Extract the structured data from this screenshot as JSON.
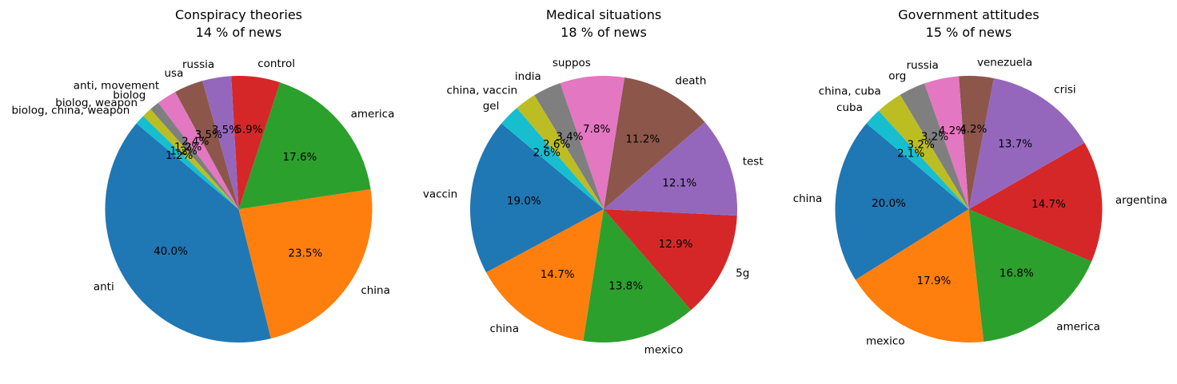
{
  "chart_data": [
    {
      "type": "pie",
      "title": "Conspiracy theories",
      "subtitle": "14 % of news",
      "start_angle_deg": 140,
      "direction": "counterclockwise",
      "colors": [
        "#1f77b4",
        "#ff7f0e",
        "#2ca02c",
        "#d62728",
        "#9467bd",
        "#8c564b",
        "#e377c2",
        "#7f7f7f",
        "#bcbd22",
        "#17becf"
      ],
      "categories": [
        "anti",
        "china",
        "america",
        "control",
        "russia",
        "usa",
        "anti, movement",
        "biolog",
        "biolog, weapon",
        "biolog, china, weapon"
      ],
      "values": [
        40.0,
        23.5,
        17.6,
        5.9,
        3.5,
        3.5,
        2.4,
        1.2,
        1.2,
        1.2
      ],
      "pct_labels": [
        "40.0%",
        "23.5%",
        "17.6%",
        "5.9%",
        "3.5%",
        "3.5%",
        "2.4%",
        "1.2%",
        "1.2%",
        "1.2%"
      ]
    },
    {
      "type": "pie",
      "title": "Medical situations",
      "subtitle": "18 % of news",
      "start_angle_deg": 140,
      "direction": "counterclockwise",
      "colors": [
        "#1f77b4",
        "#ff7f0e",
        "#2ca02c",
        "#d62728",
        "#9467bd",
        "#8c564b",
        "#e377c2",
        "#7f7f7f",
        "#bcbd22",
        "#17becf"
      ],
      "categories": [
        "vaccin",
        "china",
        "mexico",
        "5g",
        "test",
        "death",
        "suppos",
        "india",
        "china, vaccin",
        "gel"
      ],
      "values": [
        19.0,
        14.7,
        13.8,
        12.9,
        12.1,
        11.2,
        7.8,
        3.4,
        2.6,
        2.6
      ],
      "pct_labels": [
        "19.0%",
        "14.7%",
        "13.8%",
        "12.9%",
        "12.1%",
        "11.2%",
        "7.8%",
        "3.4%",
        "2.6%",
        "2.6%"
      ]
    },
    {
      "type": "pie",
      "title": "Government attitudes",
      "subtitle": "15 % of news",
      "start_angle_deg": 140,
      "direction": "counterclockwise",
      "colors": [
        "#1f77b4",
        "#ff7f0e",
        "#2ca02c",
        "#d62728",
        "#9467bd",
        "#8c564b",
        "#e377c2",
        "#7f7f7f",
        "#bcbd22",
        "#17becf"
      ],
      "categories": [
        "china",
        "mexico",
        "america",
        "argentina",
        "crisi",
        "venezuela",
        "russia",
        "org",
        "china, cuba",
        "cuba"
      ],
      "values": [
        20.0,
        17.9,
        16.8,
        14.7,
        13.7,
        4.2,
        4.2,
        3.2,
        3.2,
        2.1
      ],
      "pct_labels": [
        "20.0%",
        "17.9%",
        "16.8%",
        "14.7%",
        "13.7%",
        "4.2%",
        "4.2%",
        "3.2%",
        "3.2%",
        "2.1%"
      ]
    }
  ]
}
